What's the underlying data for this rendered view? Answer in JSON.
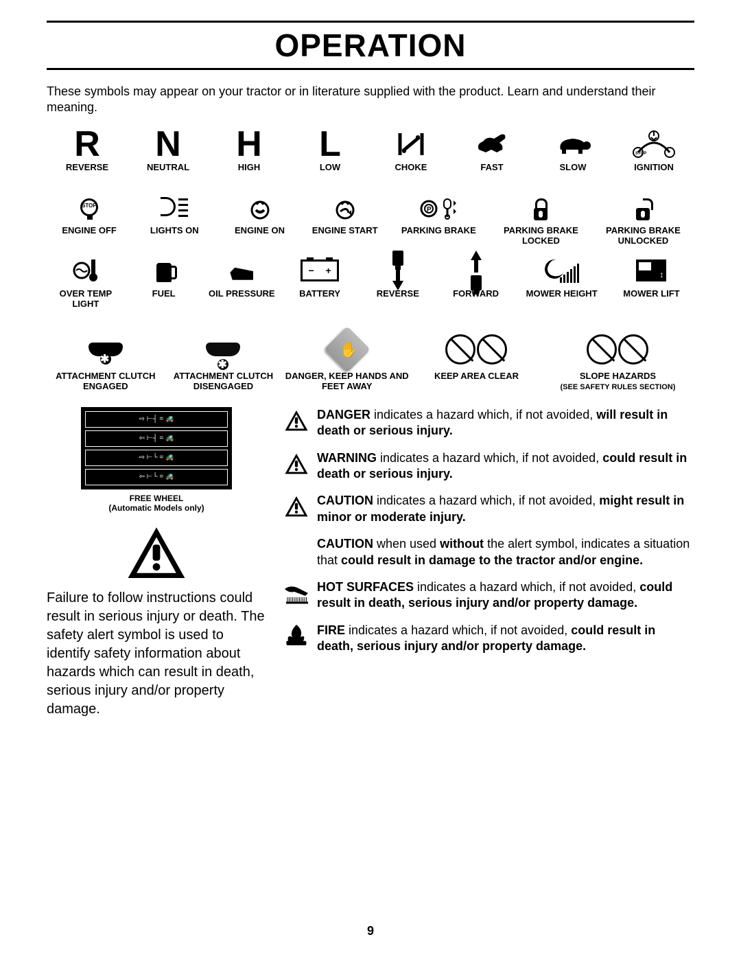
{
  "title": "OPERATION",
  "intro": "These symbols may appear on your tractor or in literature supplied with the product.  Learn and understand their meaning.",
  "page_number": "9",
  "row1": [
    {
      "glyph": "R",
      "label": "REVERSE"
    },
    {
      "glyph": "N",
      "label": "NEUTRAL"
    },
    {
      "glyph": "H",
      "label": "HIGH"
    },
    {
      "glyph": "L",
      "label": "LOW"
    },
    {
      "glyph": "choke",
      "label": "CHOKE"
    },
    {
      "glyph": "rabbit",
      "label": "FAST"
    },
    {
      "glyph": "turtle",
      "label": "SLOW"
    },
    {
      "glyph": "ignition",
      "label": "IGNITION"
    }
  ],
  "row2": [
    {
      "label": "ENGINE OFF",
      "sub": "STOP"
    },
    {
      "label": "LIGHTS ON"
    },
    {
      "label": "ENGINE ON"
    },
    {
      "label": "ENGINE START"
    },
    {
      "label": "PARKING BRAKE"
    },
    {
      "label": "PARKING BRAKE LOCKED"
    },
    {
      "label": "PARKING BRAKE UNLOCKED"
    }
  ],
  "row3": [
    {
      "label": "OVER TEMP LIGHT"
    },
    {
      "label": "FUEL"
    },
    {
      "label": "OIL PRESSURE"
    },
    {
      "label": "BATTERY",
      "minus": "−",
      "plus": "+"
    },
    {
      "label": "REVERSE"
    },
    {
      "label": "FORWARD"
    },
    {
      "label": "MOWER HEIGHT"
    },
    {
      "label": "MOWER LIFT"
    }
  ],
  "row4": [
    {
      "label": "ATTACHMENT CLUTCH ENGAGED"
    },
    {
      "label": "ATTACHMENT CLUTCH DISENGAGED"
    },
    {
      "label": "DANGER, KEEP HANDS AND FEET AWAY"
    },
    {
      "label": "KEEP AREA CLEAR"
    },
    {
      "label": "SLOPE HAZARDS",
      "sub": "(SEE SAFETY RULES SECTION)"
    }
  ],
  "freewheel": {
    "line1": "FREE WHEEL",
    "line2": "(Automatic Models only)"
  },
  "safety_paragraph": "Failure to follow instructions could result in serious injury or death. The safety alert symbol is used to identify safety information about hazards which can result in death, serious injury and/or property damage.",
  "hazards": [
    {
      "kw": "DANGER",
      "rest": " indicates a hazard which, if not avoided, ",
      "bold": "will result in death or serious injury.",
      "icon": "tri"
    },
    {
      "kw": "WARNING",
      "rest": " indicates a hazard which, if not avoided, ",
      "bold": "could result in death or serious injury.",
      "icon": "tri"
    },
    {
      "kw": "CAUTION",
      "rest": " indicates a hazard which, if not avoided, ",
      "bold": "might result in minor or moderate injury.",
      "icon": "tri"
    },
    {
      "kw": "CAUTION",
      "rest": " when used ",
      "mid_bold": "without",
      "rest2": " the alert symbol, indicates a situation that ",
      "bold": "could result in damage to the tractor and/or engine.",
      "icon": "none"
    },
    {
      "kw": "HOT SURFACES",
      "rest": " indicates a hazard which, if not avoided, ",
      "bold": "could result in death, serious injury and/or property damage.",
      "icon": "hot"
    },
    {
      "kw": "FIRE",
      "rest": " indicates a hazard which, if not avoided, ",
      "bold": "could result in death, serious injury and/or property damage.",
      "icon": "fire"
    }
  ]
}
